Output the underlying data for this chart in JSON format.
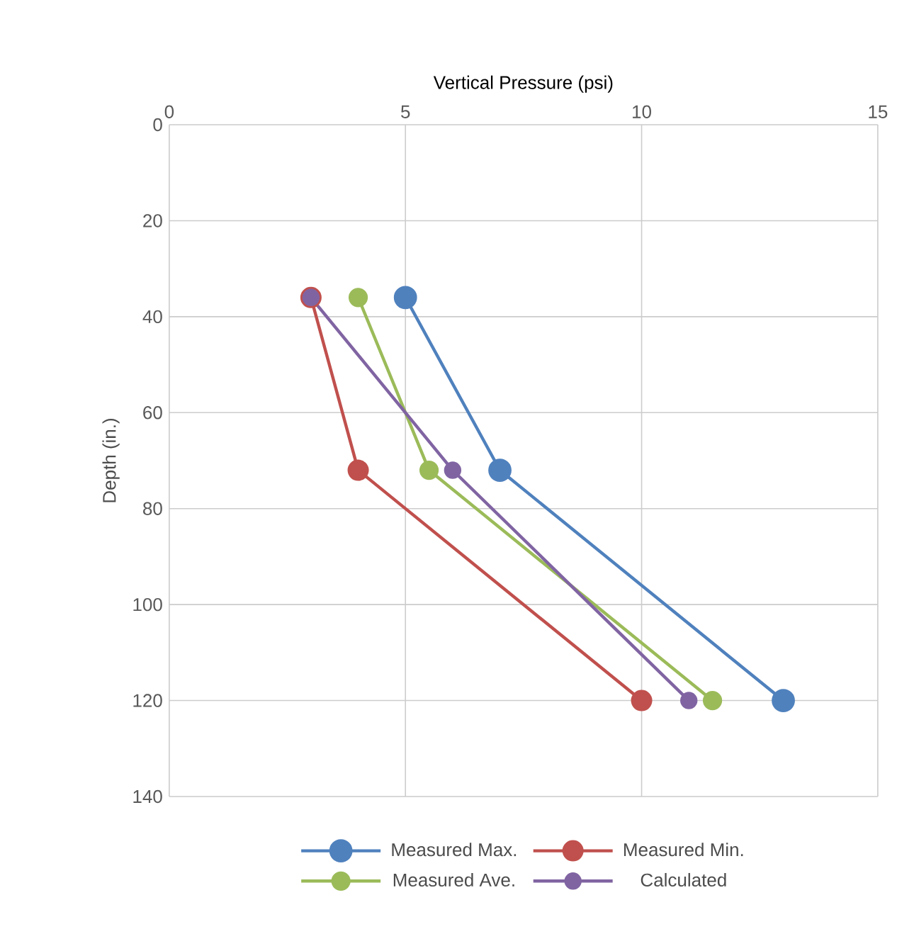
{
  "chart_data": {
    "type": "line",
    "xlabel": "Vertical Pressure (psi)",
    "ylabel": "Depth (in.)",
    "xlim": [
      0,
      15
    ],
    "xticks": [
      0,
      5,
      10,
      15
    ],
    "ylim": [
      140,
      0
    ],
    "yticks": [
      0,
      20,
      40,
      60,
      80,
      100,
      120,
      140
    ],
    "grid": true,
    "legend": "bottom",
    "marker": "circle",
    "line_style": "solid",
    "series": [
      {
        "name": "Measured Max.",
        "color": "#4f81bd",
        "x": [
          5,
          7,
          13
        ],
        "values": [
          36,
          72,
          120
        ]
      },
      {
        "name": "Measured Min.",
        "color": "#c0504d",
        "x": [
          3,
          4,
          10
        ],
        "values": [
          36,
          72,
          120
        ]
      },
      {
        "name": "Measured Ave.",
        "color": "#9bbb59",
        "x": [
          4,
          5.5,
          11.5
        ],
        "values": [
          36,
          72,
          120
        ]
      },
      {
        "name": "Calculated",
        "color": "#8064a2",
        "x": [
          3,
          6,
          11
        ],
        "values": [
          36,
          72,
          120
        ]
      }
    ]
  }
}
